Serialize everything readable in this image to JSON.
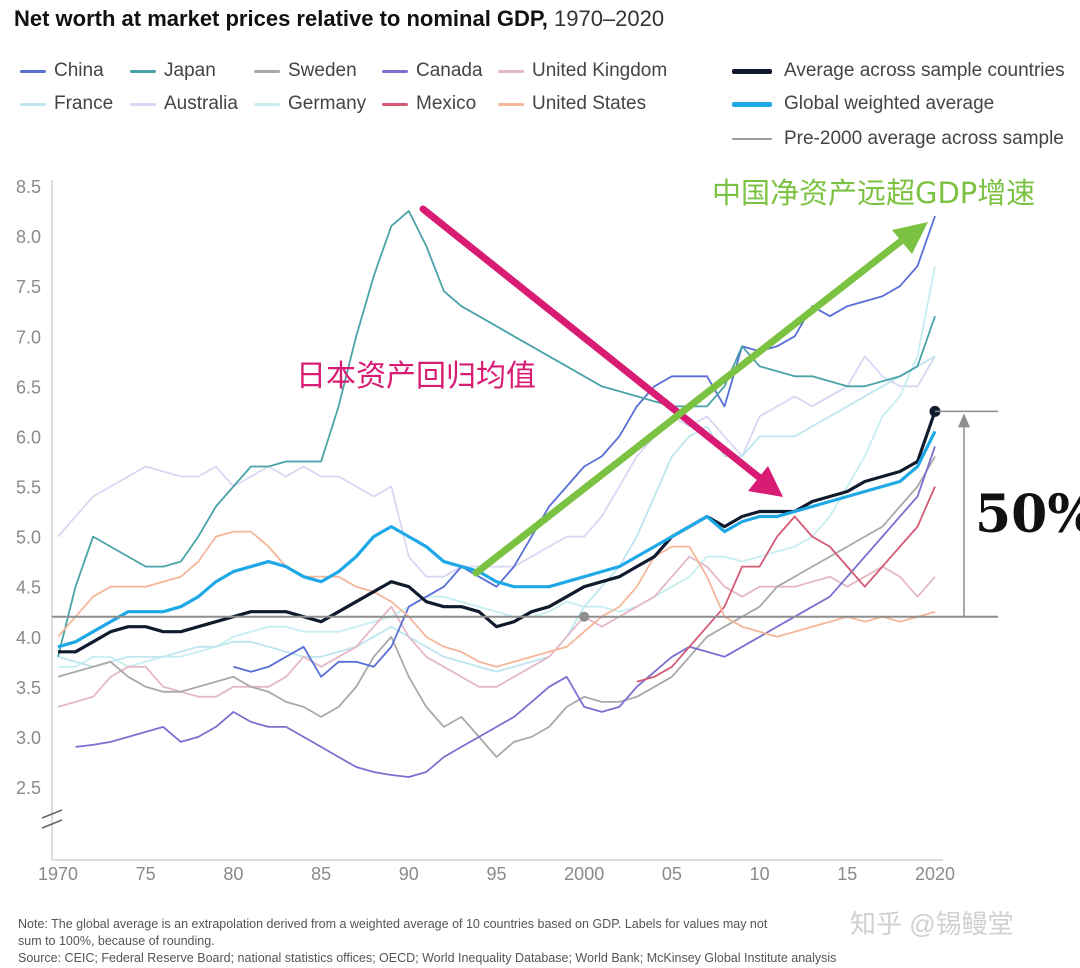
{
  "title_bold": "Net worth at market prices relative to nominal GDP,",
  "title_range": " 1970–2020",
  "legend": [
    {
      "name": "China",
      "color": "#5a6fd6",
      "col": 0,
      "row": 0
    },
    {
      "name": "Japan",
      "color": "#4aa3a8",
      "col": 1,
      "row": 0
    },
    {
      "name": "Sweden",
      "color": "#a9a9a9",
      "col": 2,
      "row": 0
    },
    {
      "name": "Canada",
      "color": "#7b6fd0",
      "col": 3,
      "row": 0
    },
    {
      "name": "United Kingdom",
      "color": "#e4b8c8",
      "col": 4,
      "row": 0
    },
    {
      "name": "France",
      "color": "#bfe6ef",
      "col": 0,
      "row": 1
    },
    {
      "name": "Australia",
      "color": "#d6d8f4",
      "col": 1,
      "row": 1
    },
    {
      "name": "Germany",
      "color": "#c7eef0",
      "col": 2,
      "row": 1
    },
    {
      "name": "Mexico",
      "color": "#d45a76",
      "col": 3,
      "row": 1
    },
    {
      "name": "United States",
      "color": "#f5b79a",
      "col": 4,
      "row": 1
    }
  ],
  "legend_right": [
    {
      "name": "Average across sample countries",
      "color": "#0f1b2d",
      "thick": true
    },
    {
      "name": "Global weighted average",
      "color": "#1fa8e6",
      "thick": true
    },
    {
      "name": "Pre-2000 average across sample",
      "color": "#9a9a9a",
      "thick": false
    }
  ],
  "annotations": {
    "japan_cn": "日本资产回归均值",
    "china_cn": "中国净资产远超GDP增速",
    "pct": "50%"
  },
  "notes": {
    "line1": "Note: The global average is an extrapolation derived from a weighted average of 10 countries based on GDP. Labels for values may not sum to 100%, because of rounding.",
    "line2": "sum to 100%, because of rounding.",
    "line3": "Source: CEIC; Federal Reserve Board; national statistics offices; OECD; World Inequality Database; World Bank; McKinsey Global Institute analysis"
  },
  "watermark": "知乎 @锡鳗堂",
  "chart_data": {
    "type": "line",
    "xlim": [
      1970,
      2020
    ],
    "ylim": [
      2.2,
      8.5
    ],
    "yticks": [
      2.5,
      3.0,
      3.5,
      4.0,
      4.5,
      5.0,
      5.5,
      6.0,
      6.5,
      7.0,
      7.5,
      8.0,
      8.5
    ],
    "xticks": [
      1970,
      1975,
      1980,
      1985,
      1990,
      1995,
      2000,
      2005,
      2010,
      2015,
      2020
    ],
    "xtick_labels": [
      "1970",
      "75",
      "80",
      "85",
      "90",
      "95",
      "2000",
      "05",
      "10",
      "15",
      "2020"
    ],
    "pre2000_average": 4.2,
    "series": [
      {
        "name": "Australia",
        "color": "#d6d8f4",
        "x0": 1970,
        "values": [
          5.0,
          5.2,
          5.4,
          5.5,
          5.6,
          5.7,
          5.65,
          5.6,
          5.6,
          5.7,
          5.5,
          5.6,
          5.7,
          5.6,
          5.7,
          5.6,
          5.6,
          5.5,
          5.4,
          5.5,
          4.8,
          4.6,
          4.6,
          4.7,
          4.7,
          4.7,
          4.7,
          4.8,
          4.9,
          5.0,
          5.0,
          5.2,
          5.5,
          5.8,
          6.0,
          6.2,
          6.1,
          6.2,
          6.0,
          5.8,
          6.2,
          6.3,
          6.4,
          6.3,
          6.4,
          6.5,
          6.8,
          6.6,
          6.5,
          6.5,
          6.8
        ]
      },
      {
        "name": "Germany",
        "color": "#c7eef0",
        "x0": 1970,
        "values": [
          3.7,
          3.7,
          3.8,
          3.8,
          3.7,
          3.75,
          3.8,
          3.8,
          3.85,
          3.9,
          4.0,
          4.05,
          4.1,
          4.1,
          4.05,
          4.05,
          4.05,
          4.1,
          4.15,
          4.2,
          4.3,
          4.4,
          4.4,
          4.35,
          4.3,
          4.25,
          4.2,
          4.2,
          4.25,
          4.35,
          4.3,
          4.3,
          4.25,
          4.3,
          4.4,
          4.5,
          4.6,
          4.8,
          4.8,
          4.75,
          4.8,
          4.85,
          4.9,
          5.0,
          5.2,
          5.5,
          5.8,
          6.2,
          6.4,
          6.8,
          7.7
        ]
      },
      {
        "name": "France",
        "color": "#bfe6ef",
        "x0": 1970,
        "values": [
          3.8,
          3.75,
          3.7,
          3.75,
          3.8,
          3.8,
          3.8,
          3.85,
          3.9,
          3.9,
          3.95,
          3.95,
          3.9,
          3.85,
          3.8,
          3.8,
          3.85,
          3.9,
          4.0,
          4.1,
          4.0,
          3.9,
          3.8,
          3.75,
          3.7,
          3.65,
          3.7,
          3.75,
          3.8,
          4.0,
          4.3,
          4.5,
          4.7,
          5.0,
          5.4,
          5.8,
          6.0,
          6.1,
          5.8,
          5.8,
          6.0,
          6.0,
          6.0,
          6.1,
          6.2,
          6.3,
          6.4,
          6.5,
          6.6,
          6.7,
          6.8
        ]
      },
      {
        "name": "United Kingdom",
        "color": "#e4b8c8",
        "x0": 1970,
        "values": [
          3.3,
          3.35,
          3.4,
          3.6,
          3.7,
          3.7,
          3.5,
          3.45,
          3.4,
          3.4,
          3.5,
          3.5,
          3.5,
          3.6,
          3.8,
          3.7,
          3.8,
          3.9,
          4.1,
          4.3,
          4.0,
          3.8,
          3.7,
          3.6,
          3.5,
          3.5,
          3.6,
          3.7,
          3.8,
          4.0,
          4.2,
          4.1,
          4.2,
          4.3,
          4.4,
          4.6,
          4.8,
          4.7,
          4.5,
          4.4,
          4.5,
          4.5,
          4.5,
          4.55,
          4.6,
          4.5,
          4.6,
          4.7,
          4.6,
          4.4,
          4.6
        ]
      },
      {
        "name": "Sweden",
        "color": "#a9a9a9",
        "x0": 1970,
        "values": [
          3.6,
          3.65,
          3.7,
          3.75,
          3.6,
          3.5,
          3.45,
          3.45,
          3.5,
          3.55,
          3.6,
          3.5,
          3.45,
          3.35,
          3.3,
          3.2,
          3.3,
          3.5,
          3.8,
          4.0,
          3.6,
          3.3,
          3.1,
          3.2,
          3.0,
          2.8,
          2.95,
          3.0,
          3.1,
          3.3,
          3.4,
          3.35,
          3.35,
          3.4,
          3.5,
          3.6,
          3.8,
          4.0,
          4.1,
          4.2,
          4.3,
          4.5,
          4.6,
          4.7,
          4.8,
          4.9,
          5.0,
          5.1,
          5.3,
          5.5,
          5.8
        ]
      },
      {
        "name": "Canada",
        "color": "#7b6fd0",
        "x0": 1970,
        "values": [
          null,
          2.9,
          2.92,
          2.95,
          3.0,
          3.05,
          3.1,
          2.95,
          3.0,
          3.1,
          3.25,
          3.15,
          3.1,
          3.1,
          3.0,
          2.9,
          2.8,
          2.7,
          2.65,
          2.62,
          2.6,
          2.65,
          2.8,
          2.9,
          3.0,
          3.1,
          3.2,
          3.35,
          3.5,
          3.6,
          3.3,
          3.25,
          3.3,
          3.5,
          3.65,
          3.8,
          3.9,
          3.85,
          3.8,
          3.9,
          4.0,
          4.1,
          4.2,
          4.3,
          4.4,
          4.6,
          4.8,
          5.0,
          5.2,
          5.4,
          5.9
        ]
      },
      {
        "name": "Mexico",
        "color": "#d45a76",
        "x0": 1970,
        "values": [
          null,
          null,
          null,
          null,
          null,
          null,
          null,
          null,
          null,
          null,
          null,
          null,
          null,
          null,
          null,
          null,
          null,
          null,
          null,
          null,
          null,
          null,
          null,
          null,
          null,
          null,
          null,
          null,
          null,
          null,
          null,
          null,
          null,
          3.55,
          3.6,
          3.7,
          3.9,
          4.1,
          4.3,
          4.7,
          4.7,
          5.0,
          5.2,
          5.0,
          4.9,
          4.7,
          4.5,
          4.7,
          4.9,
          5.1,
          5.5
        ]
      },
      {
        "name": "China",
        "color": "#5a6fd6",
        "x0": 1970,
        "values": [
          null,
          null,
          null,
          null,
          null,
          null,
          null,
          null,
          null,
          null,
          3.7,
          3.65,
          3.7,
          3.8,
          3.9,
          3.6,
          3.75,
          3.75,
          3.7,
          3.9,
          4.3,
          4.4,
          4.5,
          4.7,
          4.6,
          4.5,
          4.7,
          5.0,
          5.3,
          5.5,
          5.7,
          5.8,
          6.0,
          6.3,
          6.5,
          6.6,
          6.6,
          6.6,
          6.3,
          6.9,
          6.85,
          6.9,
          7.0,
          7.3,
          7.2,
          7.3,
          7.35,
          7.4,
          7.5,
          7.7,
          8.2
        ]
      },
      {
        "name": "Japan",
        "color": "#4aa3a8",
        "x0": 1970,
        "values": [
          3.8,
          4.5,
          5.0,
          4.9,
          4.8,
          4.7,
          4.7,
          4.75,
          5.0,
          5.3,
          5.5,
          5.7,
          5.7,
          5.75,
          5.75,
          5.75,
          6.3,
          7.0,
          7.6,
          8.1,
          8.25,
          7.9,
          7.45,
          7.3,
          7.2,
          7.1,
          7.0,
          6.9,
          6.8,
          6.7,
          6.6,
          6.5,
          6.45,
          6.4,
          6.35,
          6.3,
          6.3,
          6.3,
          6.5,
          6.9,
          6.7,
          6.65,
          6.6,
          6.6,
          6.55,
          6.5,
          6.5,
          6.55,
          6.6,
          6.7,
          7.2
        ]
      },
      {
        "name": "United States",
        "color": "#f5b79a",
        "x0": 1970,
        "values": [
          4.0,
          4.2,
          4.4,
          4.5,
          4.5,
          4.5,
          4.55,
          4.6,
          4.75,
          5.0,
          5.05,
          5.05,
          4.9,
          4.7,
          4.6,
          4.6,
          4.6,
          4.5,
          4.45,
          4.35,
          4.2,
          4.0,
          3.9,
          3.85,
          3.75,
          3.7,
          3.75,
          3.8,
          3.85,
          3.9,
          4.05,
          4.2,
          4.3,
          4.5,
          4.8,
          4.9,
          4.9,
          4.6,
          4.2,
          4.1,
          4.05,
          4.0,
          4.05,
          4.1,
          4.15,
          4.2,
          4.15,
          4.2,
          4.15,
          4.2,
          4.25
        ]
      },
      {
        "name": "Average across sample countries",
        "color": "#0f1b2d",
        "x0": 1970,
        "values": [
          3.85,
          3.85,
          3.95,
          4.05,
          4.1,
          4.1,
          4.05,
          4.05,
          4.1,
          4.15,
          4.2,
          4.25,
          4.25,
          4.25,
          4.2,
          4.15,
          4.25,
          4.35,
          4.45,
          4.55,
          4.5,
          4.35,
          4.3,
          4.3,
          4.25,
          4.1,
          4.15,
          4.25,
          4.3,
          4.4,
          4.5,
          4.55,
          4.6,
          4.7,
          4.8,
          5.0,
          5.1,
          5.2,
          5.1,
          5.2,
          5.25,
          5.25,
          5.25,
          5.35,
          5.4,
          5.45,
          5.55,
          5.6,
          5.65,
          5.75,
          6.25
        ]
      },
      {
        "name": "Global weighted average",
        "color": "#1fa8e6",
        "x0": 1970,
        "values": [
          3.9,
          3.95,
          4.05,
          4.15,
          4.25,
          4.25,
          4.25,
          4.3,
          4.4,
          4.55,
          4.65,
          4.7,
          4.75,
          4.7,
          4.6,
          4.55,
          4.65,
          4.8,
          5.0,
          5.1,
          5.0,
          4.9,
          4.75,
          4.7,
          4.65,
          4.55,
          4.5,
          4.5,
          4.5,
          4.55,
          4.6,
          4.65,
          4.7,
          4.8,
          4.9,
          5.0,
          5.1,
          5.2,
          5.05,
          5.15,
          5.2,
          5.2,
          5.25,
          5.3,
          5.35,
          5.4,
          5.45,
          5.5,
          5.55,
          5.7,
          6.05
        ]
      }
    ]
  }
}
